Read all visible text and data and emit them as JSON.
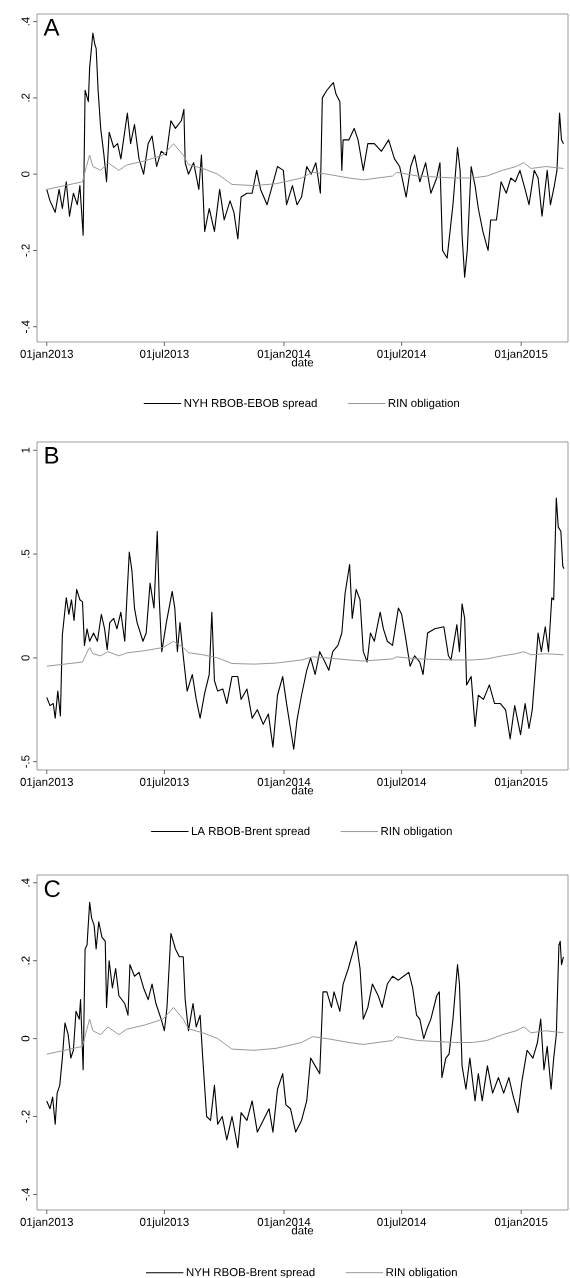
{
  "chart_data": [
    {
      "type": "line",
      "title": "A",
      "xlabel": "date",
      "legend": "bottom",
      "xlim": [
        "2012-12-17",
        "2015-03-14"
      ],
      "xticks": [
        {
          "value": "2013-01-01",
          "label": "01jan2013"
        },
        {
          "value": "2013-07-01",
          "label": "01jul2013"
        },
        {
          "value": "2014-01-01",
          "label": "01jan2014"
        },
        {
          "value": "2014-07-01",
          "label": "01jul2014"
        },
        {
          "value": "2015-01-01",
          "label": "01jan2015"
        }
      ],
      "ylim": [
        -0.44,
        0.42
      ],
      "yticks": [
        {
          "value": -0.4,
          "label": "-.4"
        },
        {
          "value": -0.2,
          "label": "-.2"
        },
        0,
        {
          "value": 0.2,
          "label": ".2"
        },
        {
          "value": 0.4,
          "label": ".4"
        }
      ],
      "series": [
        {
          "name": "NYH RBOB-EBOB spread",
          "color": "#000000",
          "x": [
            "2013-01-01",
            "2013-01-06",
            "2013-01-14",
            "2013-01-20",
            "2013-01-25",
            "2013-01-31",
            "2013-02-05",
            "2013-02-11",
            "2013-02-17",
            "2013-02-21",
            "2013-02-26",
            "2013-03-01",
            "2013-03-06",
            "2013-03-08",
            "2013-03-13",
            "2013-03-16",
            "2013-03-18",
            "2013-03-21",
            "2013-03-25",
            "2013-03-30",
            "2013-04-03",
            "2013-04-07",
            "2013-04-14",
            "2013-04-20",
            "2013-04-25",
            "2013-05-05",
            "2013-05-10",
            "2013-05-16",
            "2013-05-23",
            "2013-05-30",
            "2013-06-06",
            "2013-06-12",
            "2013-06-19",
            "2013-06-26",
            "2013-07-04",
            "2013-07-11",
            "2013-07-18",
            "2013-07-27",
            "2013-07-31",
            "2013-08-02",
            "2013-08-07",
            "2013-08-15",
            "2013-08-23",
            "2013-08-27",
            "2013-09-01",
            "2013-09-08",
            "2013-09-16",
            "2013-09-24",
            "2013-10-01",
            "2013-10-10",
            "2013-10-16",
            "2013-10-22",
            "2013-10-27",
            "2013-11-05",
            "2013-11-13",
            "2013-11-20",
            "2013-11-26",
            "2013-12-06",
            "2013-12-14",
            "2013-12-22",
            "2013-12-31",
            "2014-01-05",
            "2014-01-14",
            "2014-01-21",
            "2014-01-28",
            "2014-02-05",
            "2014-02-12",
            "2014-02-19",
            "2014-02-26",
            "2014-03-01",
            "2014-03-08",
            "2014-03-13",
            "2014-03-18",
            "2014-03-22",
            "2014-03-28",
            "2014-03-31",
            "2014-04-02",
            "2014-04-11",
            "2014-04-19",
            "2014-04-25",
            "2014-05-03",
            "2014-05-10",
            "2014-05-20",
            "2014-05-31",
            "2014-06-11",
            "2014-06-20",
            "2014-06-28",
            "2014-07-08",
            "2014-07-15",
            "2014-07-21",
            "2014-07-29",
            "2014-08-07",
            "2014-08-15",
            "2014-08-24",
            "2014-08-29",
            "2014-09-02",
            "2014-09-09",
            "2014-09-18",
            "2014-09-25",
            "2014-09-29",
            "2014-10-02",
            "2014-10-06",
            "2014-10-10",
            "2014-10-16",
            "2014-10-22",
            "2014-10-27",
            "2014-11-03",
            "2014-11-11",
            "2014-11-15",
            "2014-11-24",
            "2014-12-01",
            "2014-12-09",
            "2014-12-16",
            "2014-12-23",
            "2014-12-30",
            "2015-01-07",
            "2015-01-13",
            "2015-01-21",
            "2015-01-27",
            "2015-02-02",
            "2015-02-10",
            "2015-02-15",
            "2015-02-21",
            "2015-02-25",
            "2015-03-01",
            "2015-03-04",
            "2015-03-07"
          ],
          "values": [
            -0.04,
            -0.07,
            -0.1,
            -0.04,
            -0.09,
            -0.02,
            -0.11,
            -0.05,
            -0.08,
            -0.03,
            -0.16,
            0.22,
            0.19,
            0.28,
            0.37,
            0.34,
            0.33,
            0.22,
            0.12,
            0.05,
            -0.02,
            0.11,
            0.07,
            0.08,
            0.04,
            0.16,
            0.08,
            0.13,
            0.04,
            0,
            0.08,
            0.1,
            0.02,
            0.06,
            0.05,
            0.14,
            0.12,
            0.14,
            0.17,
            0.03,
            0,
            0.03,
            -0.04,
            0.05,
            -0.15,
            -0.09,
            -0.15,
            -0.04,
            -0.12,
            -0.07,
            -0.1,
            -0.17,
            -0.06,
            -0.05,
            -0.05,
            0.01,
            -0.04,
            -0.08,
            -0.03,
            0.02,
            0.01,
            -0.08,
            -0.03,
            -0.08,
            -0.06,
            0.02,
            0,
            0.03,
            -0.05,
            0.2,
            0.22,
            0.23,
            0.24,
            0.21,
            0.19,
            0.01,
            0.09,
            0.09,
            0.12,
            0.09,
            0.01,
            0.08,
            0.08,
            0.06,
            0.09,
            0.04,
            0.02,
            -0.06,
            0.02,
            0.05,
            -0.02,
            0.03,
            -0.05,
            -0.01,
            0.03,
            -0.2,
            -0.22,
            -0.08,
            0.07,
            0.01,
            -0.16,
            -0.27,
            -0.2,
            0.02,
            -0.03,
            -0.09,
            -0.15,
            -0.2,
            -0.12,
            -0.12,
            -0.02,
            -0.05,
            -0.01,
            -0.02,
            0.01,
            -0.04,
            -0.08,
            0.01,
            -0.01,
            -0.11,
            0.01,
            -0.08,
            -0.03,
            0.01,
            0.16,
            0.09,
            0.08
          ]
        },
        {
          "name": "RIN obligation",
          "color": "#999999",
          "x": [
            "2013-01-01",
            "2013-02-25",
            "2013-03-03",
            "2013-03-08",
            "2013-03-13",
            "2013-03-25",
            "2013-04-05",
            "2013-04-22",
            "2013-05-04",
            "2013-06-01",
            "2013-06-29",
            "2013-07-15",
            "2013-07-30",
            "2013-08-07",
            "2013-08-29",
            "2013-09-21",
            "2013-10-13",
            "2013-11-16",
            "2013-12-20",
            "2014-01-28",
            "2014-02-14",
            "2014-03-08",
            "2014-04-11",
            "2014-05-03",
            "2014-06-17",
            "2014-06-23",
            "2014-07-26",
            "2014-09-21",
            "2014-10-18",
            "2014-11-09",
            "2014-12-03",
            "2014-12-24",
            "2015-01-05",
            "2015-01-16",
            "2015-02-08",
            "2015-03-07"
          ],
          "values": [
            -0.04,
            -0.02,
            0.02,
            0.05,
            0.02,
            0.01,
            0.03,
            0.01,
            0.024,
            0.035,
            0.05,
            0.08,
            0.05,
            0.025,
            0.015,
            0,
            -0.027,
            -0.03,
            -0.025,
            -0.01,
            0.005,
            0,
            -0.01,
            -0.015,
            -0.005,
            0.005,
            -0.005,
            -0.01,
            -0.01,
            -0.005,
            0.01,
            0.02,
            0.03,
            0.015,
            0.02,
            0.015
          ]
        }
      ]
    },
    {
      "type": "line",
      "title": "B",
      "xlabel": "date",
      "legend": "bottom",
      "xlim": [
        "2012-12-17",
        "2015-03-14"
      ],
      "xticks": [
        {
          "value": "2013-01-01",
          "label": "01jan2013"
        },
        {
          "value": "2013-07-01",
          "label": "01jul2013"
        },
        {
          "value": "2014-01-01",
          "label": "01jan2014"
        },
        {
          "value": "2014-07-01",
          "label": "01jul2014"
        },
        {
          "value": "2015-01-01",
          "label": "01jan2015"
        }
      ],
      "ylim": [
        -0.54,
        1.04
      ],
      "yticks": [
        {
          "value": -0.5,
          "label": "-.5"
        },
        0,
        {
          "value": 0.5,
          "label": ".5"
        },
        1
      ],
      "series": [
        {
          "name": "LA RBOB-Brent spread",
          "color": "#000000",
          "x": [
            "2013-01-01",
            "2013-01-06",
            "2013-01-11",
            "2013-01-14",
            "2013-01-18",
            "2013-01-22",
            "2013-01-25",
            "2013-01-31",
            "2013-02-04",
            "2013-02-08",
            "2013-02-12",
            "2013-02-16",
            "2013-02-21",
            "2013-02-25",
            "2013-02-28",
            "2013-03-04",
            "2013-03-08",
            "2013-03-14",
            "2013-03-20",
            "2013-03-26",
            "2013-03-31",
            "2013-04-04",
            "2013-04-08",
            "2013-04-14",
            "2013-04-19",
            "2013-04-25",
            "2013-05-01",
            "2013-05-05",
            "2013-05-08",
            "2013-05-12",
            "2013-05-16",
            "2013-05-20",
            "2013-05-29",
            "2013-06-03",
            "2013-06-09",
            "2013-06-15",
            "2013-06-20",
            "2013-06-23",
            "2013-06-27",
            "2013-07-04",
            "2013-07-13",
            "2013-07-17",
            "2013-07-21",
            "2013-07-25",
            "2013-07-30",
            "2013-08-05",
            "2013-08-13",
            "2013-08-19",
            "2013-08-25",
            "2013-09-01",
            "2013-09-08",
            "2013-09-12",
            "2013-09-16",
            "2013-09-21",
            "2013-09-29",
            "2013-10-05",
            "2013-10-13",
            "2013-10-22",
            "2013-10-27",
            "2013-11-05",
            "2013-11-13",
            "2013-11-21",
            "2013-11-30",
            "2013-12-08",
            "2013-12-15",
            "2013-12-22",
            "2013-12-30",
            "2014-01-05",
            "2014-01-11",
            "2014-01-16",
            "2014-01-21",
            "2014-01-28",
            "2014-02-05",
            "2014-02-11",
            "2014-02-18",
            "2014-02-25",
            "2014-03-05",
            "2014-03-11",
            "2014-03-17",
            "2014-03-25",
            "2014-03-31",
            "2014-04-05",
            "2014-04-12",
            "2014-04-16",
            "2014-04-22",
            "2014-04-28",
            "2014-05-03",
            "2014-05-09",
            "2014-05-14",
            "2014-05-20",
            "2014-05-29",
            "2014-06-03",
            "2014-06-09",
            "2014-06-17",
            "2014-06-26",
            "2014-07-01",
            "2014-07-07",
            "2014-07-14",
            "2014-07-21",
            "2014-07-29",
            "2014-08-03",
            "2014-08-10",
            "2014-08-21",
            "2014-09-04",
            "2014-09-11",
            "2014-09-15",
            "2014-09-24",
            "2014-09-28",
            "2014-10-02",
            "2014-10-06",
            "2014-10-09",
            "2014-10-16",
            "2014-10-22",
            "2014-10-27",
            "2014-11-04",
            "2014-11-13",
            "2014-11-21",
            "2014-11-30",
            "2014-12-08",
            "2014-12-15",
            "2014-12-22",
            "2014-12-31",
            "2015-01-07",
            "2015-01-13",
            "2015-01-18",
            "2015-01-22",
            "2015-01-27",
            "2015-02-01",
            "2015-02-07",
            "2015-02-12",
            "2015-02-17",
            "2015-02-20",
            "2015-02-24",
            "2015-02-27",
            "2015-03-03",
            "2015-03-06",
            "2015-03-08"
          ],
          "values": [
            -0.19,
            -0.23,
            -0.22,
            -0.29,
            -0.16,
            -0.28,
            0.11,
            0.29,
            0.21,
            0.28,
            0.18,
            0.33,
            0.28,
            0.27,
            0.06,
            0.14,
            0.08,
            0.12,
            0.08,
            0.21,
            0.14,
            0.04,
            0.17,
            0.19,
            0.14,
            0.22,
            0.08,
            0.33,
            0.51,
            0.42,
            0.24,
            0.17,
            0.08,
            0.12,
            0.36,
            0.24,
            0.61,
            0.29,
            0.03,
            0.17,
            0.32,
            0.24,
            0.03,
            0.17,
            0.01,
            -0.16,
            -0.08,
            -0.2,
            -0.29,
            -0.17,
            -0.08,
            0.22,
            -0.11,
            -0.16,
            -0.15,
            -0.22,
            -0.09,
            -0.09,
            -0.2,
            -0.15,
            -0.29,
            -0.25,
            -0.32,
            -0.27,
            -0.43,
            -0.18,
            -0.09,
            -0.22,
            -0.34,
            -0.44,
            -0.3,
            -0.18,
            -0.06,
            0,
            -0.08,
            0.03,
            -0.02,
            -0.06,
            0.03,
            0.06,
            0.12,
            0.31,
            0.45,
            0.19,
            0.33,
            0.28,
            0.03,
            -0.02,
            0.12,
            0.08,
            0.22,
            0.14,
            0.08,
            0.06,
            0.24,
            0.21,
            0.1,
            -0.04,
            0.01,
            -0.02,
            -0.08,
            0.12,
            0.14,
            0.15,
            0.01,
            -0.01,
            0.16,
            0.03,
            0.26,
            0.19,
            -0.13,
            -0.09,
            -0.33,
            -0.18,
            -0.2,
            -0.13,
            -0.22,
            -0.22,
            -0.25,
            -0.39,
            -0.23,
            -0.37,
            -0.22,
            -0.34,
            -0.25,
            -0.09,
            0.12,
            0.03,
            0.15,
            0.03,
            0.29,
            0.28,
            0.77,
            0.63,
            0.61,
            0.44,
            0.43
          ]
        },
        {
          "name": "RIN obligation",
          "color": "#999999",
          "x": [
            "2013-01-01",
            "2013-02-25",
            "2013-03-03",
            "2013-03-08",
            "2013-03-13",
            "2013-03-25",
            "2013-04-05",
            "2013-04-22",
            "2013-05-04",
            "2013-06-01",
            "2013-06-29",
            "2013-07-15",
            "2013-07-30",
            "2013-08-07",
            "2013-08-29",
            "2013-09-21",
            "2013-10-13",
            "2013-11-16",
            "2013-12-20",
            "2014-01-28",
            "2014-02-14",
            "2014-03-08",
            "2014-04-11",
            "2014-05-03",
            "2014-06-17",
            "2014-06-23",
            "2014-07-26",
            "2014-09-21",
            "2014-10-18",
            "2014-11-09",
            "2014-12-03",
            "2014-12-24",
            "2015-01-05",
            "2015-01-16",
            "2015-02-08",
            "2015-03-07"
          ],
          "values": [
            -0.04,
            -0.02,
            0.02,
            0.05,
            0.02,
            0.01,
            0.03,
            0.01,
            0.024,
            0.035,
            0.05,
            0.08,
            0.05,
            0.025,
            0.015,
            0,
            -0.027,
            -0.03,
            -0.025,
            -0.01,
            0.005,
            0,
            -0.01,
            -0.015,
            -0.005,
            0.005,
            -0.005,
            -0.01,
            -0.01,
            -0.005,
            0.01,
            0.02,
            0.03,
            0.015,
            0.02,
            0.015
          ]
        }
      ]
    },
    {
      "type": "line",
      "title": "C",
      "xlabel": "date",
      "legend": "bottom",
      "xlim": [
        "2012-12-17",
        "2015-03-14"
      ],
      "xticks": [
        {
          "value": "2013-01-01",
          "label": "01jan2013"
        },
        {
          "value": "2013-07-01",
          "label": "01jul2013"
        },
        {
          "value": "2014-01-01",
          "label": "01jan2014"
        },
        {
          "value": "2014-07-01",
          "label": "01jul2014"
        },
        {
          "value": "2015-01-01",
          "label": "01jan2015"
        }
      ],
      "ylim": [
        -0.44,
        0.42
      ],
      "yticks": [
        {
          "value": -0.4,
          "label": "-.4"
        },
        {
          "value": -0.2,
          "label": "-.2"
        },
        0,
        {
          "value": 0.2,
          "label": ".2"
        },
        {
          "value": 0.4,
          "label": ".4"
        }
      ],
      "series": [
        {
          "name": "NYH RBOB-Brent spread",
          "color": "#000000",
          "x": [
            "2013-01-01",
            "2013-01-06",
            "2013-01-10",
            "2013-01-14",
            "2013-01-17",
            "2013-01-21",
            "2013-01-25",
            "2013-01-29",
            "2013-02-03",
            "2013-02-07",
            "2013-02-11",
            "2013-02-15",
            "2013-02-20",
            "2013-02-22",
            "2013-02-26",
            "2013-03-01",
            "2013-03-04",
            "2013-03-08",
            "2013-03-11",
            "2013-03-15",
            "2013-03-18",
            "2013-03-22",
            "2013-03-27",
            "2013-04-01",
            "2013-04-03",
            "2013-04-07",
            "2013-04-12",
            "2013-04-17",
            "2013-04-22",
            "2013-05-01",
            "2013-05-06",
            "2013-05-09",
            "2013-05-16",
            "2013-05-23",
            "2013-05-30",
            "2013-06-06",
            "2013-06-12",
            "2013-06-18",
            "2013-06-26",
            "2013-07-01",
            "2013-07-05",
            "2013-07-11",
            "2013-07-18",
            "2013-07-24",
            "2013-07-30",
            "2013-08-02",
            "2013-08-07",
            "2013-08-14",
            "2013-08-19",
            "2013-08-25",
            "2013-08-29",
            "2013-09-04",
            "2013-09-10",
            "2013-09-16",
            "2013-09-21",
            "2013-09-28",
            "2013-10-05",
            "2013-10-13",
            "2013-10-22",
            "2013-10-27",
            "2013-11-05",
            "2013-11-13",
            "2013-11-21",
            "2013-11-30",
            "2013-12-09",
            "2013-12-15",
            "2013-12-22",
            "2013-12-30",
            "2014-01-04",
            "2014-01-11",
            "2014-01-19",
            "2014-01-28",
            "2014-02-05",
            "2014-02-11",
            "2014-02-18",
            "2014-02-25",
            "2014-03-02",
            "2014-03-08",
            "2014-03-15",
            "2014-03-19",
            "2014-03-28",
            "2014-04-02",
            "2014-04-10",
            "2014-04-15",
            "2014-04-22",
            "2014-04-28",
            "2014-05-03",
            "2014-05-10",
            "2014-05-17",
            "2014-05-26",
            "2014-06-01",
            "2014-06-09",
            "2014-06-17",
            "2014-06-26",
            "2014-07-04",
            "2014-07-12",
            "2014-07-18",
            "2014-07-24",
            "2014-07-29",
            "2014-08-04",
            "2014-08-10",
            "2014-08-15",
            "2014-08-24",
            "2014-08-28",
            "2014-09-01",
            "2014-09-07",
            "2014-09-12",
            "2014-09-18",
            "2014-09-25",
            "2014-09-28",
            "2014-10-02",
            "2014-10-08",
            "2014-10-14",
            "2014-10-22",
            "2014-10-27",
            "2014-11-02",
            "2014-11-10",
            "2014-11-18",
            "2014-11-27",
            "2014-12-05",
            "2014-12-13",
            "2014-12-20",
            "2014-12-27",
            "2015-01-02",
            "2015-01-10",
            "2015-01-19",
            "2015-01-26",
            "2015-01-31",
            "2015-02-05",
            "2015-02-10",
            "2015-02-16",
            "2015-02-20",
            "2015-02-24",
            "2015-02-28",
            "2015-03-02",
            "2015-03-04",
            "2015-03-07"
          ],
          "values": [
            -0.16,
            -0.18,
            -0.15,
            -0.22,
            -0.14,
            -0.12,
            -0.05,
            0.04,
            0.01,
            -0.05,
            -0.03,
            0.07,
            0.05,
            0.1,
            -0.08,
            0.23,
            0.24,
            0.35,
            0.31,
            0.29,
            0.23,
            0.3,
            0.26,
            0.25,
            0.08,
            0.2,
            0.13,
            0.18,
            0.11,
            0.09,
            0.06,
            0.19,
            0.16,
            0.17,
            0.13,
            0.1,
            0.14,
            0.09,
            0.05,
            0.02,
            0.08,
            0.27,
            0.23,
            0.21,
            0.21,
            0.1,
            0.02,
            0.09,
            0.03,
            0.06,
            -0.05,
            -0.2,
            -0.21,
            -0.12,
            -0.22,
            -0.2,
            -0.26,
            -0.2,
            -0.28,
            -0.19,
            -0.21,
            -0.16,
            -0.24,
            -0.21,
            -0.18,
            -0.24,
            -0.13,
            -0.09,
            -0.17,
            -0.18,
            -0.24,
            -0.21,
            -0.16,
            -0.05,
            -0.07,
            -0.09,
            0.12,
            0.12,
            0.08,
            0.12,
            0.07,
            0.14,
            0.18,
            0.21,
            0.25,
            0.18,
            0.05,
            0.08,
            0.14,
            0.11,
            0.08,
            0.14,
            0.16,
            0.15,
            0.16,
            0.17,
            0.13,
            0.06,
            0.05,
            0,
            0.03,
            0.05,
            0.11,
            0.12,
            -0.1,
            -0.05,
            -0.04,
            0.05,
            0.19,
            0.14,
            -0.07,
            -0.13,
            -0.05,
            -0.16,
            -0.09,
            -0.16,
            -0.07,
            -0.14,
            -0.1,
            -0.14,
            -0.1,
            -0.15,
            -0.19,
            -0.11,
            -0.03,
            -0.05,
            -0.01,
            0.05,
            -0.08,
            -0.02,
            -0.13,
            -0.05,
            0.01,
            0.24,
            0.25,
            0.19,
            0.21
          ]
        },
        {
          "name": "RIN obligation",
          "color": "#999999",
          "x": [
            "2013-01-01",
            "2013-02-25",
            "2013-03-03",
            "2013-03-08",
            "2013-03-13",
            "2013-03-25",
            "2013-04-05",
            "2013-04-22",
            "2013-05-04",
            "2013-06-01",
            "2013-06-29",
            "2013-07-15",
            "2013-07-30",
            "2013-08-07",
            "2013-08-29",
            "2013-09-21",
            "2013-10-13",
            "2013-11-16",
            "2013-12-20",
            "2014-01-28",
            "2014-02-14",
            "2014-03-08",
            "2014-04-11",
            "2014-05-03",
            "2014-06-17",
            "2014-06-23",
            "2014-07-26",
            "2014-09-21",
            "2014-10-18",
            "2014-11-09",
            "2014-12-03",
            "2014-12-24",
            "2015-01-05",
            "2015-01-16",
            "2015-02-08",
            "2015-03-07"
          ],
          "values": [
            -0.04,
            -0.02,
            0.02,
            0.05,
            0.02,
            0.01,
            0.03,
            0.01,
            0.024,
            0.035,
            0.05,
            0.08,
            0.05,
            0.025,
            0.015,
            0,
            -0.027,
            -0.03,
            -0.025,
            -0.01,
            0.005,
            0,
            -0.01,
            -0.015,
            -0.005,
            0.005,
            -0.005,
            -0.01,
            -0.01,
            -0.005,
            0.01,
            0.02,
            0.03,
            0.015,
            0.02,
            0.015
          ]
        }
      ]
    }
  ]
}
